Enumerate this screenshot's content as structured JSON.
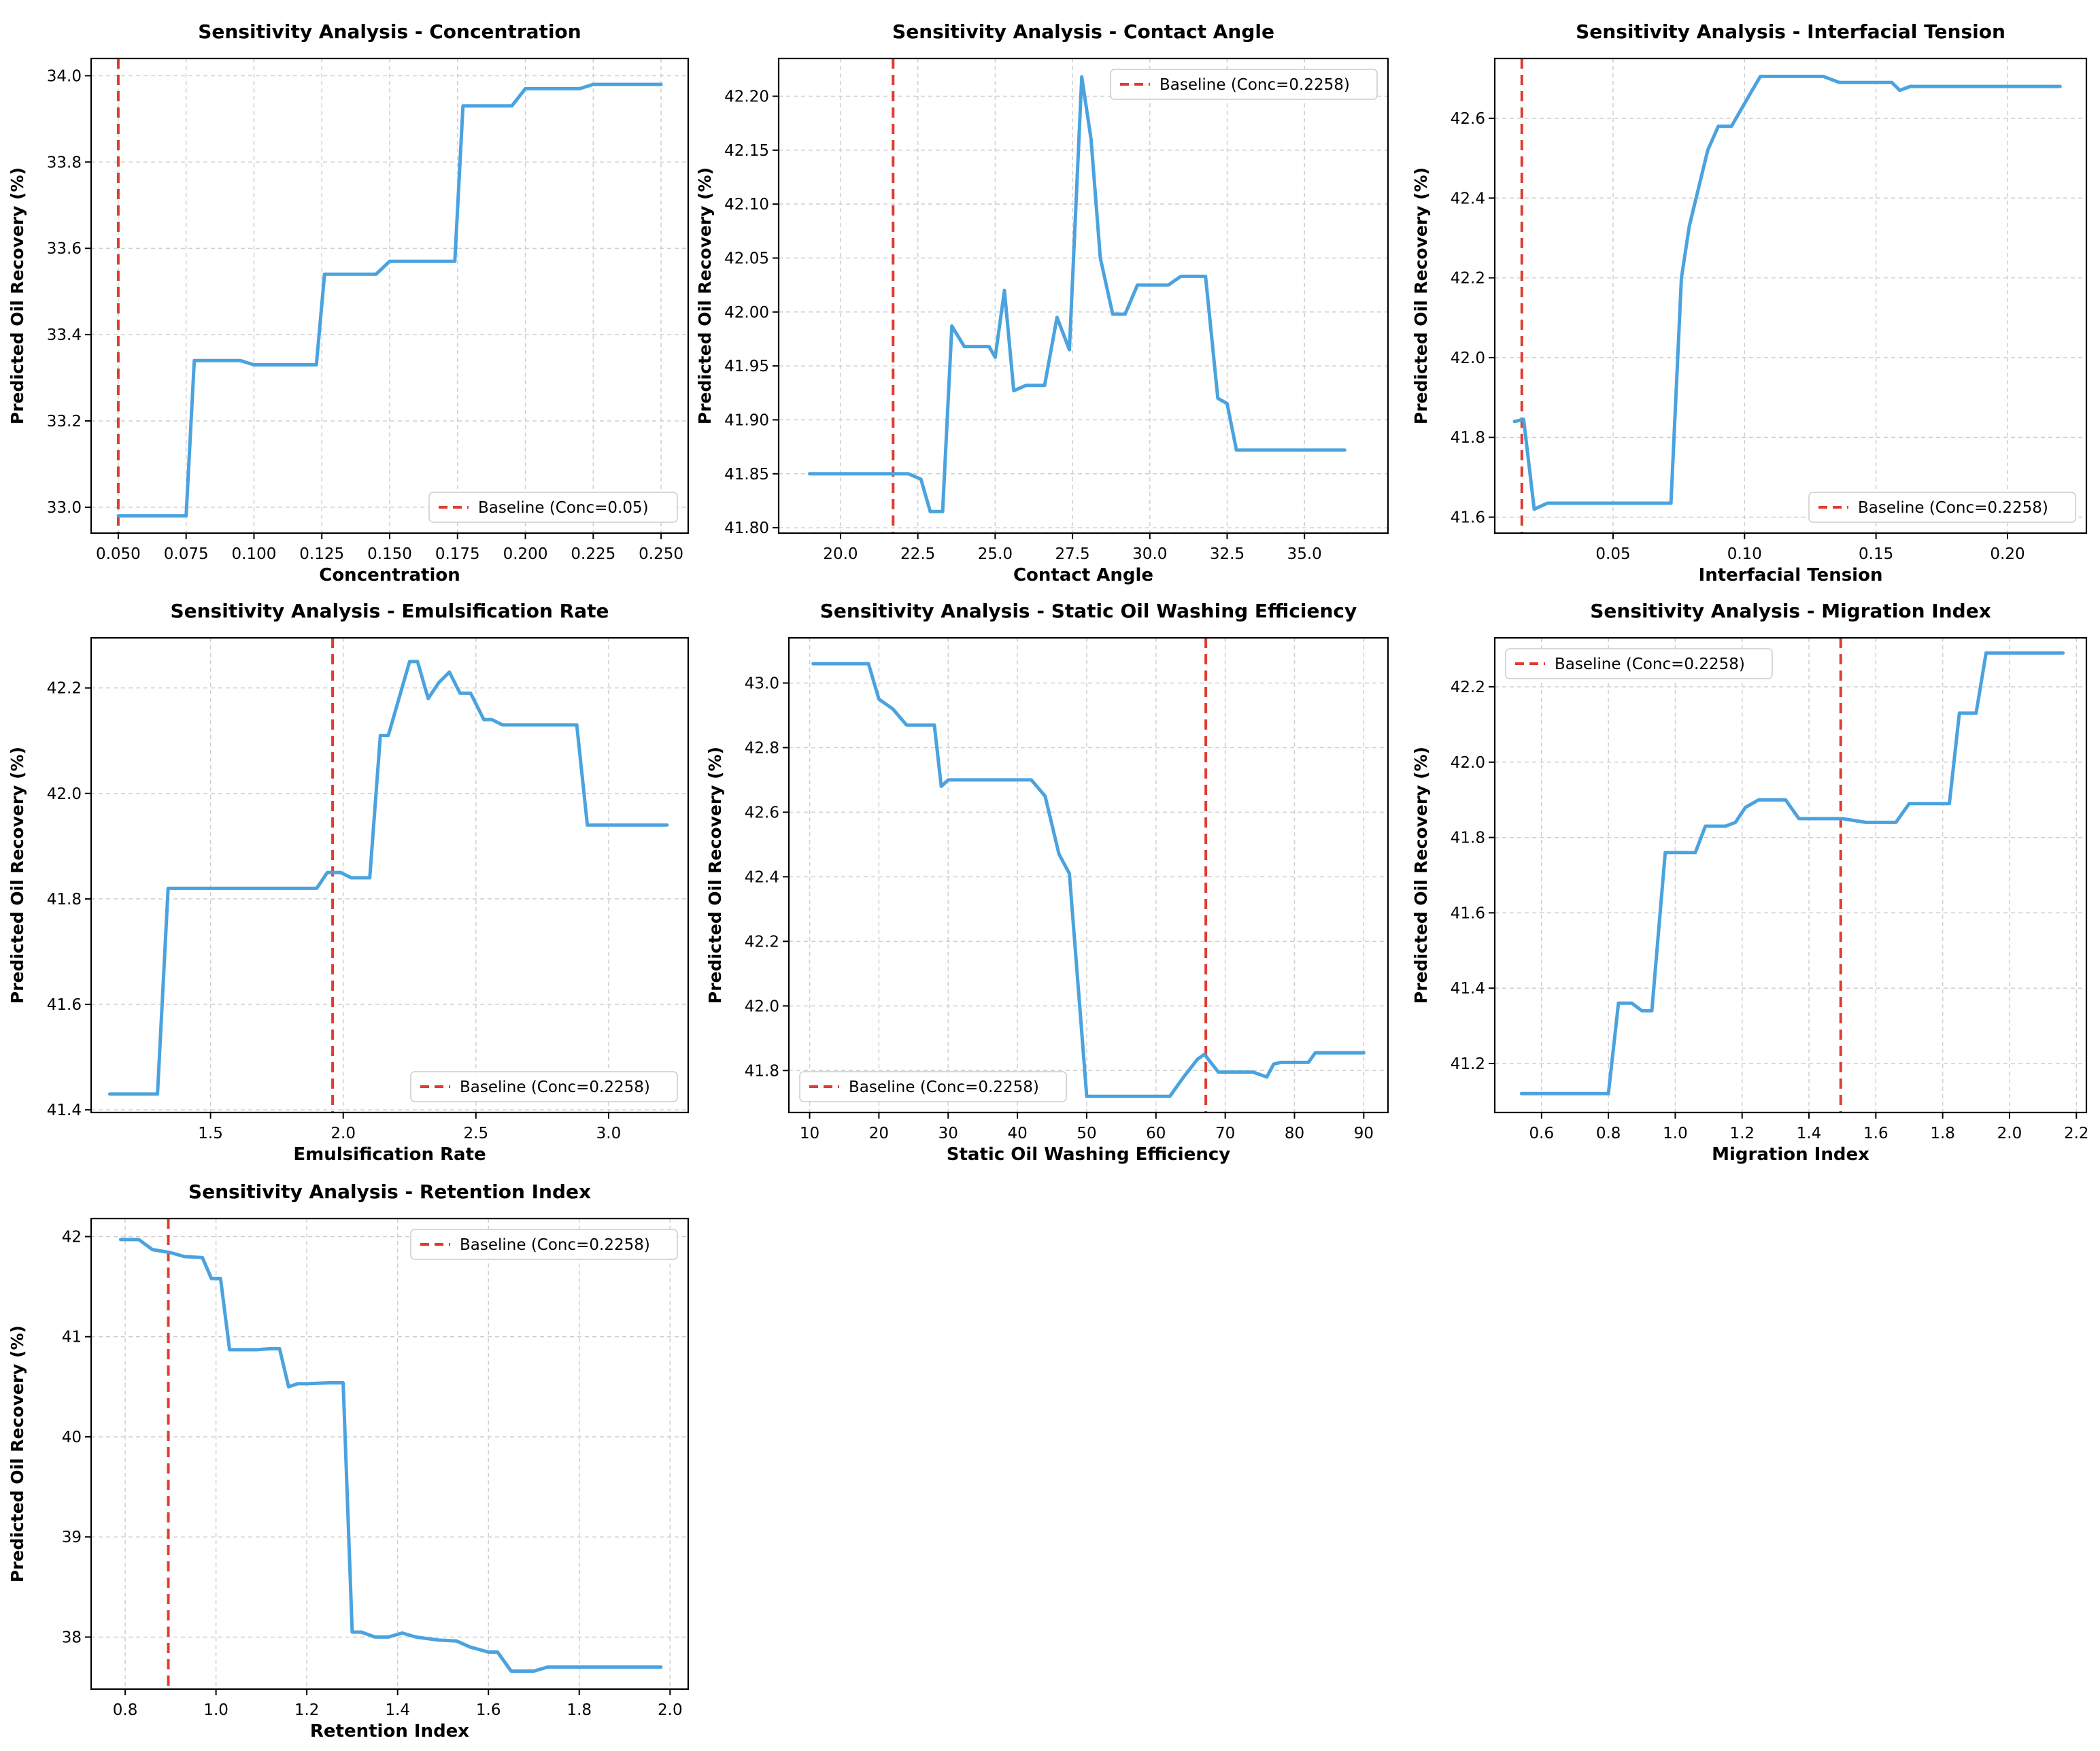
{
  "chart_data": [
    {
      "type": "line",
      "title": "Sensitivity Analysis - Concentration",
      "xlabel": "Concentration",
      "ylabel": "Predicted Oil Recovery (%)",
      "xlim": [
        0.04,
        0.26
      ],
      "ylim": [
        32.94,
        34.04
      ],
      "xticks": [
        "0.050",
        "0.075",
        "0.100",
        "0.125",
        "0.150",
        "0.175",
        "0.200",
        "0.225",
        "0.250"
      ],
      "xtick_values": [
        0.05,
        0.075,
        0.1,
        0.125,
        0.15,
        0.175,
        0.2,
        0.225,
        0.25
      ],
      "yticks": [
        "33.0",
        "33.2",
        "33.4",
        "33.6",
        "33.8",
        "34.0"
      ],
      "ytick_values": [
        33.0,
        33.2,
        33.4,
        33.6,
        33.8,
        34.0
      ],
      "grid": true,
      "legend": {
        "label": "Baseline (Conc=0.05)",
        "position": "lower-right"
      },
      "baseline_x": 0.05,
      "series": [
        {
          "x": [
            0.05,
            0.075,
            0.078,
            0.095,
            0.1,
            0.123,
            0.126,
            0.145,
            0.15,
            0.17,
            0.174,
            0.177,
            0.195,
            0.2,
            0.22,
            0.225,
            0.25
          ],
          "y": [
            32.98,
            32.98,
            33.34,
            33.34,
            33.33,
            33.33,
            33.54,
            33.54,
            33.57,
            33.57,
            33.57,
            33.93,
            33.93,
            33.97,
            33.97,
            33.98,
            33.98
          ]
        }
      ]
    },
    {
      "type": "line",
      "title": "Sensitivity Analysis - Contact Angle",
      "xlabel": "Contact Angle",
      "ylabel": "Predicted Oil Recovery (%)",
      "xlim": [
        18.0,
        37.7
      ],
      "ylim": [
        41.795,
        42.235
      ],
      "xticks": [
        "20.0",
        "22.5",
        "25.0",
        "27.5",
        "30.0",
        "32.5",
        "35.0"
      ],
      "xtick_values": [
        20,
        22.5,
        25,
        27.5,
        30,
        32.5,
        35
      ],
      "yticks": [
        "41.80",
        "41.85",
        "41.90",
        "41.95",
        "42.00",
        "42.05",
        "42.10",
        "42.15",
        "42.20"
      ],
      "ytick_values": [
        41.8,
        41.85,
        41.9,
        41.95,
        42.0,
        42.05,
        42.1,
        42.15,
        42.2
      ],
      "grid": true,
      "legend": {
        "label": "Baseline (Conc=0.2258)",
        "position": "upper-right"
      },
      "baseline_x": 21.7,
      "series": [
        {
          "x": [
            19.0,
            22.2,
            22.6,
            22.9,
            23.3,
            23.6,
            24.0,
            24.8,
            25.0,
            25.3,
            25.6,
            26.0,
            26.6,
            27.0,
            27.4,
            27.8,
            28.1,
            28.4,
            28.8,
            29.2,
            29.6,
            30.0,
            30.6,
            31.0,
            31.8,
            32.2,
            32.5,
            32.8,
            36.3
          ],
          "y": [
            41.85,
            41.85,
            41.845,
            41.815,
            41.815,
            41.987,
            41.968,
            41.968,
            41.958,
            42.02,
            41.927,
            41.932,
            41.932,
            41.995,
            41.965,
            42.218,
            42.16,
            42.05,
            41.998,
            41.998,
            42.025,
            42.025,
            42.025,
            42.033,
            42.033,
            41.92,
            41.915,
            41.872,
            41.872
          ]
        }
      ]
    },
    {
      "type": "line",
      "title": "Sensitivity Analysis - Interfacial Tension",
      "xlabel": "Interfacial Tension",
      "ylabel": "Predicted Oil Recovery (%)",
      "xlim": [
        0.005,
        0.23
      ],
      "ylim": [
        41.56,
        42.75
      ],
      "xticks": [
        "0.05",
        "0.10",
        "0.15",
        "0.20"
      ],
      "xtick_values": [
        0.05,
        0.1,
        0.15,
        0.2
      ],
      "yticks": [
        "41.6",
        "41.8",
        "42.0",
        "42.2",
        "42.4",
        "42.6"
      ],
      "ytick_values": [
        41.6,
        41.8,
        42.0,
        42.2,
        42.4,
        42.6
      ],
      "grid": true,
      "legend": {
        "label": "Baseline (Conc=0.2258)",
        "position": "lower-right"
      },
      "baseline_x": 0.0153,
      "series": [
        {
          "x": [
            0.0125,
            0.016,
            0.02,
            0.025,
            0.072,
            0.076,
            0.079,
            0.086,
            0.09,
            0.095,
            0.102,
            0.106,
            0.13,
            0.136,
            0.156,
            0.159,
            0.163,
            0.22
          ],
          "y": [
            41.84,
            41.845,
            41.62,
            41.635,
            41.635,
            42.2,
            42.33,
            42.52,
            42.58,
            42.58,
            42.66,
            42.705,
            42.705,
            42.69,
            42.69,
            42.67,
            42.68,
            42.68
          ]
        }
      ]
    },
    {
      "type": "line",
      "title": "Sensitivity Analysis - Emulsification Rate",
      "xlabel": "Emulsification Rate",
      "ylabel": "Predicted Oil Recovery (%)",
      "xlim": [
        1.05,
        3.3
      ],
      "ylim": [
        41.395,
        42.295
      ],
      "xticks": [
        "1.5",
        "2.0",
        "2.5",
        "3.0"
      ],
      "xtick_values": [
        1.5,
        2.0,
        2.5,
        3.0
      ],
      "yticks": [
        "41.4",
        "41.6",
        "41.8",
        "42.0",
        "42.2"
      ],
      "ytick_values": [
        41.4,
        41.6,
        41.8,
        42.0,
        42.2
      ],
      "grid": true,
      "legend": {
        "label": "Baseline (Conc=0.2258)",
        "position": "lower-right"
      },
      "baseline_x": 1.96,
      "series": [
        {
          "x": [
            1.12,
            1.3,
            1.34,
            1.7,
            1.75,
            1.9,
            1.94,
            1.99,
            2.03,
            2.1,
            2.14,
            2.17,
            2.25,
            2.28,
            2.32,
            2.36,
            2.4,
            2.44,
            2.48,
            2.53,
            2.56,
            2.6,
            2.65,
            2.88,
            2.92,
            3.22
          ],
          "y": [
            41.43,
            41.43,
            41.82,
            41.82,
            41.82,
            41.82,
            41.85,
            41.85,
            41.84,
            41.84,
            42.11,
            42.11,
            42.25,
            42.25,
            42.18,
            42.21,
            42.23,
            42.19,
            42.19,
            42.14,
            42.14,
            42.13,
            42.13,
            42.13,
            41.94,
            41.94
          ]
        }
      ]
    },
    {
      "type": "line",
      "title": "Sensitivity Analysis - Static Oil Washing Efficiency",
      "xlabel": "Static Oil Washing Efficiency",
      "ylabel": "Predicted Oil Recovery (%)",
      "xlim": [
        7.0,
        93.5
      ],
      "ylim": [
        41.67,
        43.14
      ],
      "xticks": [
        "10",
        "20",
        "30",
        "40",
        "50",
        "60",
        "70",
        "80",
        "90"
      ],
      "xtick_values": [
        10,
        20,
        30,
        40,
        50,
        60,
        70,
        80,
        90
      ],
      "yticks": [
        "41.8",
        "42.0",
        "42.2",
        "42.4",
        "42.6",
        "42.8",
        "43.0"
      ],
      "ytick_values": [
        41.8,
        42.0,
        42.2,
        42.4,
        42.6,
        42.8,
        43.0
      ],
      "grid": true,
      "legend": {
        "label": "Baseline (Conc=0.2258)",
        "position": "lower-left"
      },
      "baseline_x": 67.2,
      "series": [
        {
          "x": [
            10.5,
            18.5,
            20,
            22,
            24,
            28,
            29,
            30,
            32,
            42,
            44,
            46,
            47.5,
            50,
            62,
            64,
            66,
            67,
            69,
            74,
            76,
            77,
            78,
            82,
            83,
            90
          ],
          "y": [
            43.06,
            43.06,
            42.95,
            42.92,
            42.87,
            42.87,
            42.68,
            42.7,
            42.7,
            42.7,
            42.65,
            42.47,
            42.41,
            41.72,
            41.72,
            41.78,
            41.835,
            41.85,
            41.795,
            41.795,
            41.78,
            41.82,
            41.825,
            41.825,
            41.855,
            41.855
          ]
        }
      ]
    },
    {
      "type": "line",
      "title": "Sensitivity Analysis - Migration Index",
      "xlabel": "Migration Index",
      "ylabel": "Predicted Oil Recovery (%)",
      "xlim": [
        0.46,
        2.23
      ],
      "ylim": [
        41.07,
        42.33
      ],
      "xticks": [
        "0.6",
        "0.8",
        "1.0",
        "1.2",
        "1.4",
        "1.6",
        "1.8",
        "2.0",
        "2.2"
      ],
      "xtick_values": [
        0.6,
        0.8,
        1.0,
        1.2,
        1.4,
        1.6,
        1.8,
        2.0,
        2.2
      ],
      "yticks": [
        "41.2",
        "41.4",
        "41.6",
        "41.8",
        "42.0",
        "42.2"
      ],
      "ytick_values": [
        41.2,
        41.4,
        41.6,
        41.8,
        42.0,
        42.2
      ],
      "grid": true,
      "legend": {
        "label": "Baseline (Conc=0.2258)",
        "position": "upper-left"
      },
      "baseline_x": 1.495,
      "series": [
        {
          "x": [
            0.54,
            0.8,
            0.83,
            0.87,
            0.9,
            0.93,
            0.97,
            1.0,
            1.06,
            1.09,
            1.15,
            1.18,
            1.21,
            1.25,
            1.3,
            1.33,
            1.37,
            1.5,
            1.57,
            1.62,
            1.66,
            1.7,
            1.77,
            1.82,
            1.85,
            1.87,
            1.9,
            1.93,
            2.16
          ],
          "y": [
            41.12,
            41.12,
            41.36,
            41.36,
            41.34,
            41.34,
            41.76,
            41.76,
            41.76,
            41.83,
            41.83,
            41.84,
            41.88,
            41.9,
            41.9,
            41.9,
            41.85,
            41.85,
            41.84,
            41.84,
            41.84,
            41.89,
            41.89,
            41.89,
            42.13,
            42.13,
            42.13,
            42.29,
            42.29
          ]
        }
      ]
    },
    {
      "type": "line",
      "title": "Sensitivity Analysis - Retention Index",
      "xlabel": "Retention Index",
      "ylabel": "Predicted Oil Recovery (%)",
      "xlim": [
        0.725,
        2.04
      ],
      "ylim": [
        37.48,
        42.18
      ],
      "xticks": [
        "0.8",
        "1.0",
        "1.2",
        "1.4",
        "1.6",
        "1.8",
        "2.0"
      ],
      "xtick_values": [
        0.8,
        1.0,
        1.2,
        1.4,
        1.6,
        1.8,
        2.0
      ],
      "yticks": [
        "38",
        "39",
        "40",
        "41",
        "42"
      ],
      "ytick_values": [
        38,
        39,
        40,
        41,
        42
      ],
      "grid": true,
      "legend": {
        "label": "Baseline (Conc=0.2258)",
        "position": "upper-right"
      },
      "baseline_x": 0.895,
      "series": [
        {
          "x": [
            0.79,
            0.83,
            0.86,
            0.9,
            0.93,
            0.97,
            0.99,
            1.01,
            1.03,
            1.06,
            1.09,
            1.12,
            1.14,
            1.16,
            1.18,
            1.2,
            1.25,
            1.28,
            1.3,
            1.32,
            1.35,
            1.38,
            1.41,
            1.44,
            1.49,
            1.53,
            1.56,
            1.6,
            1.62,
            1.65,
            1.7,
            1.73,
            1.98
          ],
          "y": [
            41.97,
            41.97,
            41.87,
            41.84,
            41.8,
            41.79,
            41.58,
            41.58,
            40.87,
            40.87,
            40.87,
            40.88,
            40.88,
            40.5,
            40.53,
            40.53,
            40.54,
            40.54,
            38.05,
            38.05,
            38.0,
            38.0,
            38.04,
            38.0,
            37.97,
            37.96,
            37.9,
            37.85,
            37.85,
            37.66,
            37.66,
            37.7,
            37.7
          ]
        }
      ]
    }
  ],
  "colors": {
    "line": "#4aa3df",
    "baseline": "#e03c31",
    "grid": "#cfcfcf",
    "axis": "#000000"
  }
}
